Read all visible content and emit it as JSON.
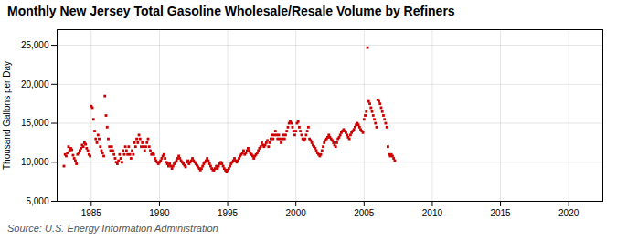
{
  "chart_data": {
    "type": "scatter",
    "title": "Monthly New Jersey Total Gasoline Wholesale/Resale Volume by Refiners",
    "ylabel": "Thousand Gallons per Day",
    "annotations": [
      "Source: U.S. Energy Information Administration"
    ],
    "color": "#cc0000",
    "marker": "square",
    "grid": true,
    "xlim": [
      1982.5,
      2022.5
    ],
    "ylim": [
      5000,
      27000
    ],
    "xticks": [
      1985,
      1990,
      1995,
      2000,
      2005,
      2010,
      2015,
      2020
    ],
    "yticks": [
      {
        "value": 5000,
        "label": "5,000"
      },
      {
        "value": 10000,
        "label": "10,000"
      },
      {
        "value": 15000,
        "label": "15,000"
      },
      {
        "value": 20000,
        "label": "20,000"
      },
      {
        "value": 25000,
        "label": "25,000"
      }
    ],
    "x": [
      1983.0,
      1983.083,
      1983.167,
      1983.25,
      1983.333,
      1983.417,
      1983.5,
      1983.583,
      1983.667,
      1983.75,
      1983.833,
      1983.917,
      1984.0,
      1984.083,
      1984.167,
      1984.25,
      1984.333,
      1984.417,
      1984.5,
      1984.583,
      1984.667,
      1984.75,
      1984.833,
      1984.917,
      1985.0,
      1985.083,
      1985.167,
      1985.25,
      1985.333,
      1985.417,
      1985.5,
      1985.583,
      1985.667,
      1985.75,
      1985.833,
      1985.917,
      1986.0,
      1986.083,
      1986.167,
      1986.25,
      1986.333,
      1986.417,
      1986.5,
      1986.583,
      1986.667,
      1986.75,
      1986.833,
      1986.917,
      1987.0,
      1987.083,
      1987.167,
      1987.25,
      1987.333,
      1987.417,
      1987.5,
      1987.583,
      1987.667,
      1987.75,
      1987.833,
      1987.917,
      1988.0,
      1988.083,
      1988.167,
      1988.25,
      1988.333,
      1988.417,
      1988.5,
      1988.583,
      1988.667,
      1988.75,
      1988.833,
      1988.917,
      1989.0,
      1989.083,
      1989.167,
      1989.25,
      1989.333,
      1989.417,
      1989.5,
      1989.583,
      1989.667,
      1989.75,
      1989.833,
      1989.917,
      1990.0,
      1990.083,
      1990.167,
      1990.25,
      1990.333,
      1990.417,
      1990.5,
      1990.583,
      1990.667,
      1990.75,
      1990.833,
      1990.917,
      1991.0,
      1991.083,
      1991.167,
      1991.25,
      1991.333,
      1991.417,
      1991.5,
      1991.583,
      1991.667,
      1991.75,
      1991.833,
      1991.917,
      1992.0,
      1992.083,
      1992.167,
      1992.25,
      1992.333,
      1992.417,
      1992.5,
      1992.583,
      1992.667,
      1992.75,
      1992.833,
      1992.917,
      1993.0,
      1993.083,
      1993.167,
      1993.25,
      1993.333,
      1993.417,
      1993.5,
      1993.583,
      1993.667,
      1993.75,
      1993.833,
      1993.917,
      1994.0,
      1994.083,
      1994.167,
      1994.25,
      1994.333,
      1994.417,
      1994.5,
      1994.583,
      1994.667,
      1994.75,
      1994.833,
      1994.917,
      1995.0,
      1995.083,
      1995.167,
      1995.25,
      1995.333,
      1995.417,
      1995.5,
      1995.583,
      1995.667,
      1995.75,
      1995.833,
      1995.917,
      1996.0,
      1996.083,
      1996.167,
      1996.25,
      1996.333,
      1996.417,
      1996.5,
      1996.583,
      1996.667,
      1996.75,
      1996.833,
      1996.917,
      1997.0,
      1997.083,
      1997.167,
      1997.25,
      1997.333,
      1997.417,
      1997.5,
      1997.583,
      1997.667,
      1997.75,
      1997.833,
      1997.917,
      1998.0,
      1998.083,
      1998.167,
      1998.25,
      1998.333,
      1998.417,
      1998.5,
      1998.583,
      1998.667,
      1998.75,
      1998.833,
      1998.917,
      1999.0,
      1999.083,
      1999.167,
      1999.25,
      1999.333,
      1999.417,
      1999.5,
      1999.583,
      1999.667,
      1999.75,
      1999.833,
      1999.917,
      2000.0,
      2000.083,
      2000.167,
      2000.25,
      2000.333,
      2000.417,
      2000.5,
      2000.583,
      2000.667,
      2000.75,
      2000.833,
      2000.917,
      2001.0,
      2001.083,
      2001.167,
      2001.25,
      2001.333,
      2001.417,
      2001.5,
      2001.583,
      2001.667,
      2001.75,
      2001.833,
      2001.917,
      2002.0,
      2002.083,
      2002.167,
      2002.25,
      2002.333,
      2002.417,
      2002.5,
      2002.583,
      2002.667,
      2002.75,
      2002.833,
      2002.917,
      2003.0,
      2003.083,
      2003.167,
      2003.25,
      2003.333,
      2003.417,
      2003.5,
      2003.583,
      2003.667,
      2003.75,
      2003.833,
      2003.917,
      2004.0,
      2004.083,
      2004.167,
      2004.25,
      2004.333,
      2004.417,
      2004.5,
      2004.583,
      2004.667,
      2004.75,
      2004.833,
      2004.917,
      2005.0,
      2005.083,
      2005.167,
      2005.25,
      2005.333,
      2005.417,
      2005.5,
      2005.583,
      2005.667,
      2005.75,
      2005.833,
      2005.917,
      2006.0,
      2006.083,
      2006.167,
      2006.25,
      2006.333,
      2006.417,
      2006.5,
      2006.583,
      2006.667,
      2006.75,
      2006.833,
      2006.917,
      2007.0,
      2007.083,
      2007.167,
      2007.25
    ],
    "values": [
      9500,
      11000,
      10800,
      11200,
      12000,
      11500,
      11800,
      11600,
      10900,
      10500,
      10200,
      9800,
      11000,
      11200,
      11500,
      11800,
      12200,
      12000,
      12500,
      12300,
      11800,
      11500,
      11000,
      10800,
      17200,
      17000,
      15500,
      14000,
      13000,
      12500,
      13500,
      13000,
      12000,
      11500,
      11200,
      10800,
      18500,
      16000,
      14500,
      13000,
      12000,
      11500,
      12000,
      11500,
      11000,
      10500,
      10000,
      9800,
      10200,
      11000,
      10500,
      10000,
      11500,
      11000,
      12000,
      11500,
      11000,
      12000,
      11000,
      10500,
      11500,
      11000,
      12500,
      12000,
      13000,
      12500,
      13500,
      13000,
      12000,
      12500,
      12000,
      11500,
      12000,
      12500,
      13000,
      12000,
      11500,
      11000,
      11200,
      11000,
      10500,
      10200,
      10000,
      9800,
      10000,
      10200,
      10500,
      10800,
      11000,
      10500,
      10000,
      9800,
      9500,
      9800,
      9500,
      9200,
      9500,
      9800,
      10000,
      10200,
      10500,
      10800,
      10500,
      10200,
      10000,
      9800,
      9600,
      9400,
      10000,
      10200,
      9800,
      10000,
      10200,
      10500,
      10200,
      10000,
      9800,
      9600,
      9400,
      9200,
      9000,
      9200,
      9500,
      9800,
      10000,
      10200,
      10500,
      10200,
      9800,
      9500,
      9200,
      9000,
      9000,
      9200,
      9500,
      9200,
      9500,
      9800,
      10000,
      9800,
      9500,
      9200,
      9000,
      8800,
      9000,
      9200,
      9500,
      9800,
      10000,
      10200,
      10500,
      10200,
      10000,
      10200,
      10500,
      10800,
      11000,
      11200,
      11500,
      11000,
      11200,
      11500,
      11800,
      11500,
      11200,
      11000,
      10800,
      10500,
      10800,
      11000,
      11200,
      11500,
      11800,
      12000,
      12500,
      12200,
      12000,
      12200,
      12500,
      12800,
      12000,
      12500,
      13000,
      13500,
      13000,
      13500,
      14000,
      13500,
      13000,
      13500,
      13000,
      12500,
      13000,
      13500,
      13000,
      13500,
      14000,
      14500,
      15000,
      15200,
      15000,
      14500,
      14000,
      13500,
      14000,
      15000,
      15200,
      14500,
      14000,
      13500,
      13000,
      12800,
      13000,
      13500,
      14000,
      14500,
      13000,
      12800,
      12500,
      12200,
      12000,
      11800,
      11500,
      11200,
      11000,
      10800,
      11000,
      11500,
      12000,
      12500,
      12800,
      13000,
      13200,
      13500,
      13200,
      13000,
      12800,
      12500,
      12200,
      12000,
      12500,
      13000,
      13200,
      13500,
      13800,
      14000,
      14200,
      14000,
      13800,
      13500,
      13200,
      13000,
      13500,
      13800,
      14000,
      14200,
      14500,
      14800,
      15000,
      14800,
      14500,
      14200,
      14000,
      13800,
      15500,
      16000,
      16500,
      24700,
      17800,
      17500,
      17000,
      16500,
      16000,
      15500,
      15000,
      14500,
      18000,
      17800,
      17500,
      17000,
      16500,
      16000,
      15500,
      15000,
      14500,
      12000,
      11000,
      10800,
      11000,
      10800,
      10500,
      10200
    ]
  }
}
